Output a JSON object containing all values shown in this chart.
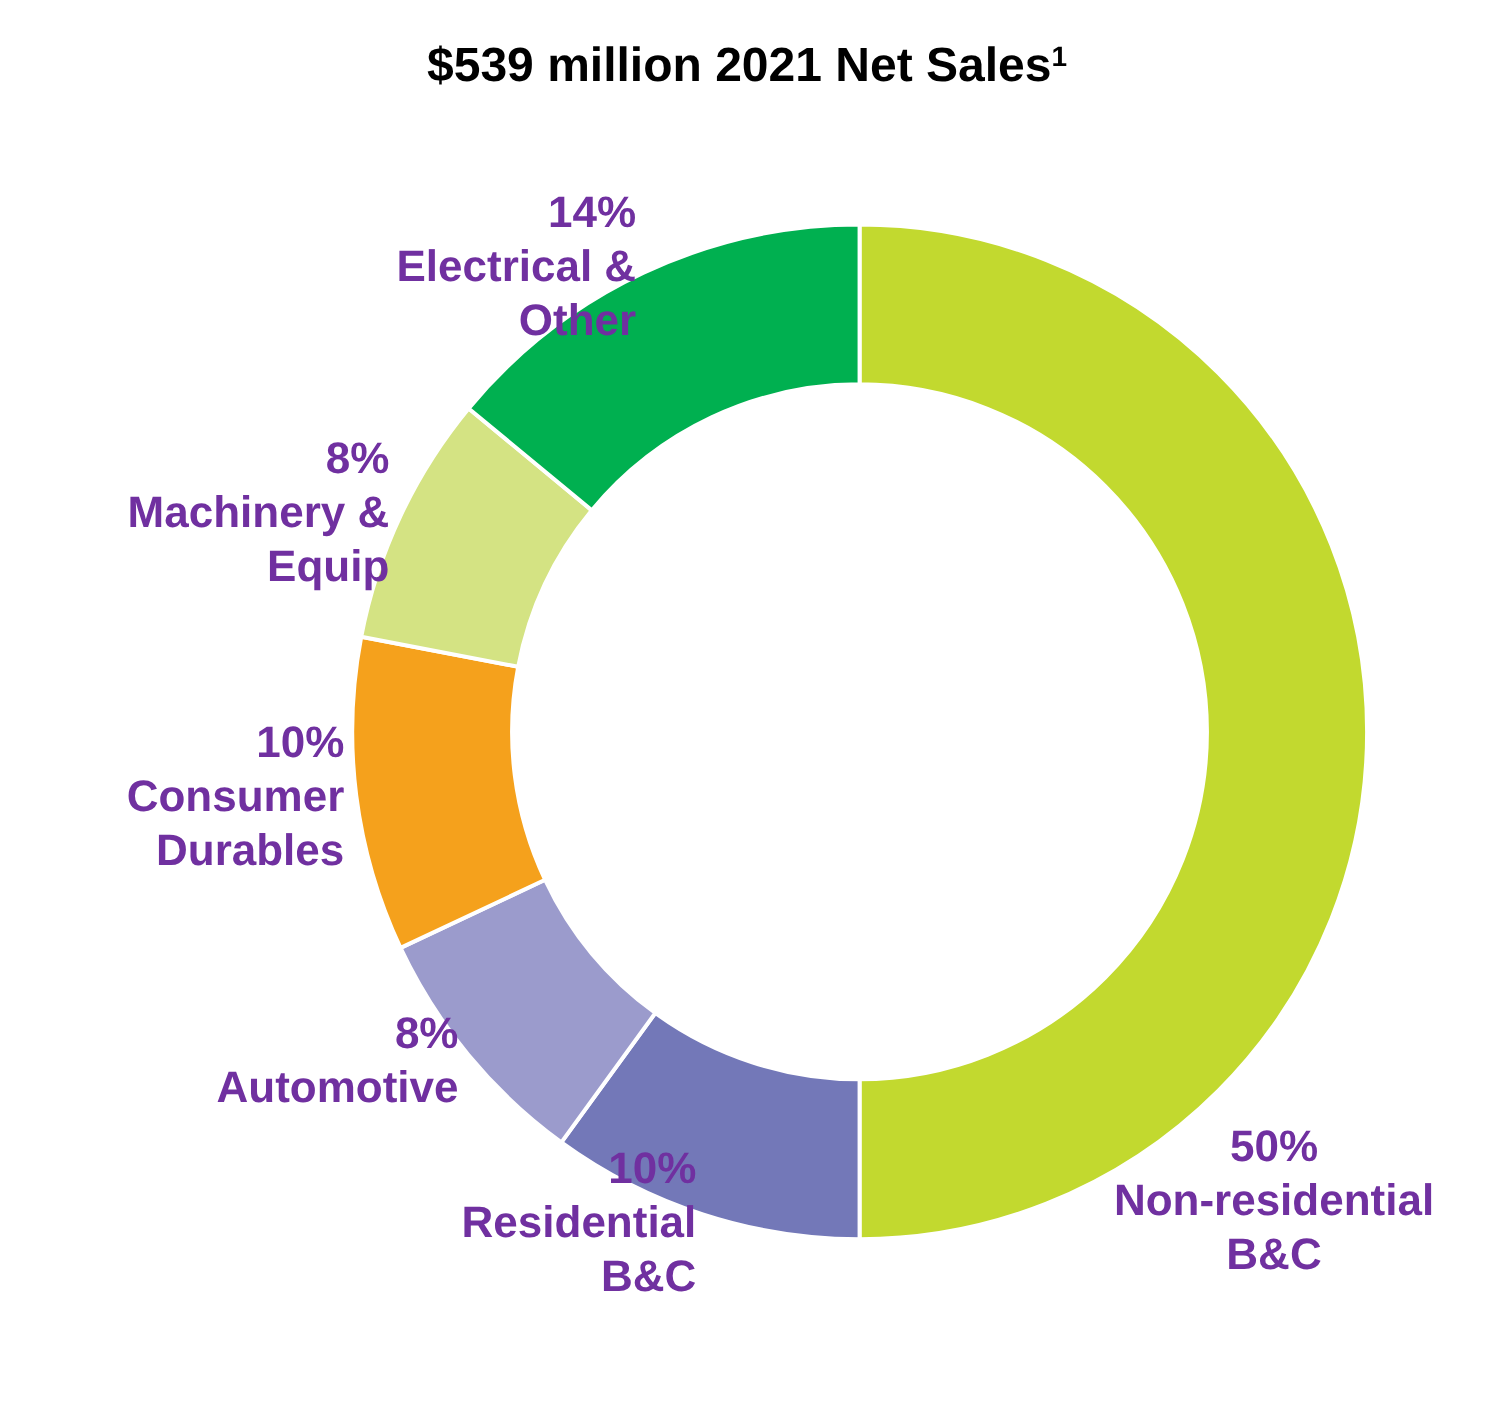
{
  "chart_data": {
    "type": "donut",
    "title": "$539 million 2021 Net Sales$^{1}$",
    "categories": [
      "Non-residential\nB&C",
      "Residential\nB&C",
      "Automotive",
      "Consumer\nDurables",
      "Machinery &\nEquip",
      "Electrical &\nOther"
    ],
    "values": [
      50,
      10,
      8,
      10,
      8,
      14
    ],
    "colors": [
      "#c2d92f",
      "#7378b8",
      "#9b9bcc",
      "#f5a11c",
      "#d4e383",
      "#00b050"
    ],
    "value_labels": [
      "50%",
      "10%",
      "8%",
      "10%",
      "8%",
      "14%"
    ],
    "legend": false
  }
}
